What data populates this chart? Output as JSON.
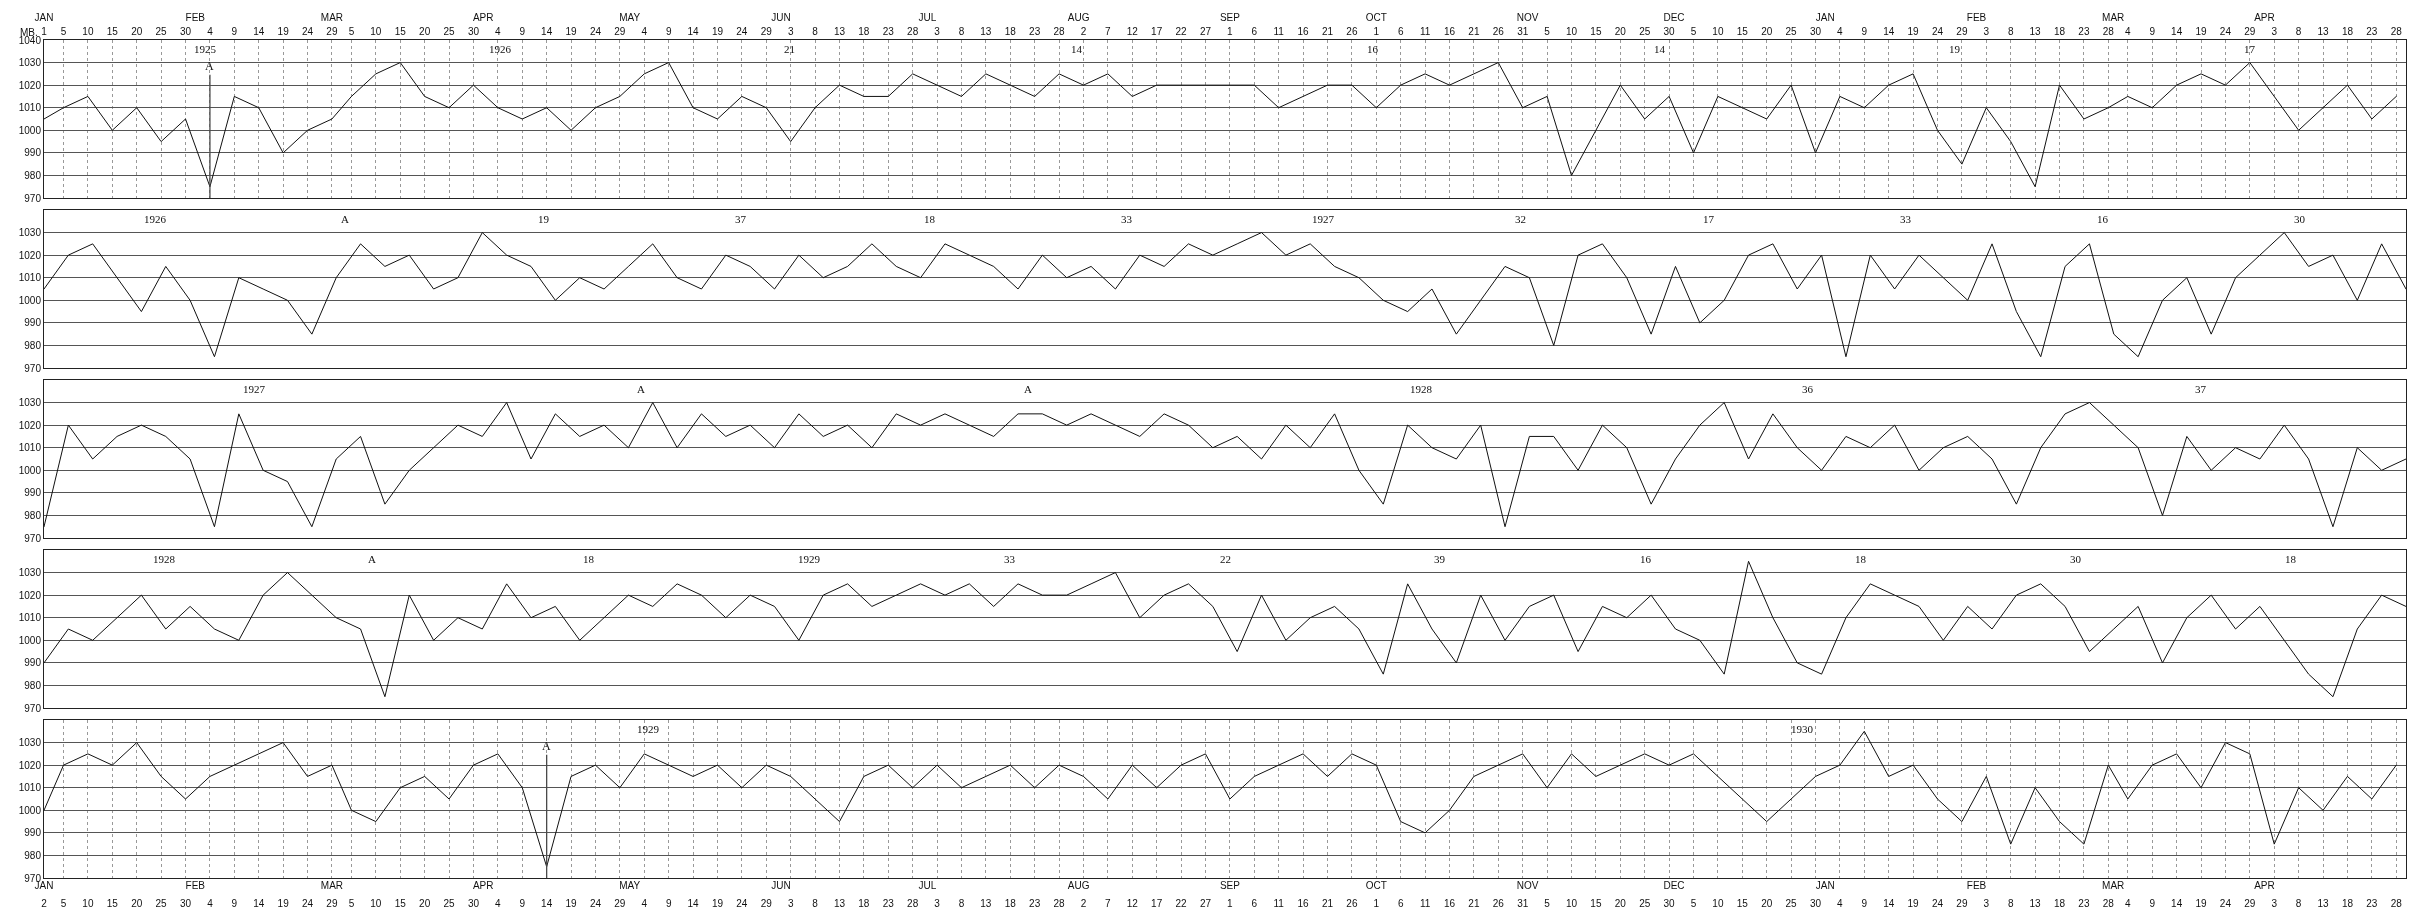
{
  "chart_data": [
    {
      "type": "line",
      "ylabel": "MB.",
      "xlim": [
        "1925-01-01",
        "1926-04-30"
      ],
      "ylim": [
        970,
        1040
      ],
      "yticks": [
        970,
        980,
        990,
        1000,
        1010,
        1020,
        1030,
        1040
      ],
      "grid": true,
      "xticks": [
        {
          "value": "1925-01-01",
          "label": "1"
        },
        {
          "value": "1925-01-05",
          "label": "5"
        },
        {
          "value": "1925-01-10",
          "label": "10"
        },
        {
          "value": "1925-01-15",
          "label": "15"
        },
        {
          "value": "1925-01-20",
          "label": "20"
        },
        {
          "value": "1925-01-25",
          "label": "25"
        },
        {
          "value": "1925-01-30",
          "label": "30"
        },
        {
          "value": "1925-02-04",
          "label": "4"
        },
        {
          "value": "1925-02-09",
          "label": "9"
        },
        {
          "value": "1925-02-14",
          "label": "14"
        },
        {
          "value": "1925-02-19",
          "label": "19"
        },
        {
          "value": "1925-02-24",
          "label": "24"
        },
        {
          "value": "1925-03-01",
          "label": "29"
        },
        {
          "value": "1925-03-05",
          "label": "5"
        },
        {
          "value": "1925-03-10",
          "label": "10"
        },
        {
          "value": "1925-03-15",
          "label": "15"
        },
        {
          "value": "1925-03-20",
          "label": "20"
        },
        {
          "value": "1925-03-25",
          "label": "25"
        },
        {
          "value": "1925-03-30",
          "label": "30"
        },
        {
          "value": "1925-04-04",
          "label": "4"
        },
        {
          "value": "1925-04-09",
          "label": "9"
        },
        {
          "value": "1925-04-14",
          "label": "14"
        },
        {
          "value": "1925-04-19",
          "label": "19"
        },
        {
          "value": "1925-04-24",
          "label": "24"
        },
        {
          "value": "1925-04-29",
          "label": "29"
        },
        {
          "value": "1925-05-04",
          "label": "4"
        },
        {
          "value": "1925-05-09",
          "label": "9"
        },
        {
          "value": "1925-05-14",
          "label": "14"
        },
        {
          "value": "1925-05-19",
          "label": "19"
        },
        {
          "value": "1925-05-24",
          "label": "24"
        },
        {
          "value": "1925-05-29",
          "label": "29"
        },
        {
          "value": "1925-06-03",
          "label": "3"
        },
        {
          "value": "1925-06-08",
          "label": "8"
        },
        {
          "value": "1925-06-13",
          "label": "13"
        },
        {
          "value": "1925-06-18",
          "label": "18"
        },
        {
          "value": "1925-06-23",
          "label": "23"
        },
        {
          "value": "1925-06-28",
          "label": "28"
        },
        {
          "value": "1925-07-03",
          "label": "3"
        },
        {
          "value": "1925-07-08",
          "label": "8"
        },
        {
          "value": "1925-07-13",
          "label": "13"
        },
        {
          "value": "1925-07-18",
          "label": "18"
        },
        {
          "value": "1925-07-23",
          "label": "23"
        },
        {
          "value": "1925-07-28",
          "label": "28"
        },
        {
          "value": "1925-08-02",
          "label": "2"
        },
        {
          "value": "1925-08-07",
          "label": "7"
        },
        {
          "value": "1925-08-12",
          "label": "12"
        },
        {
          "value": "1925-08-17",
          "label": "17"
        },
        {
          "value": "1925-08-22",
          "label": "22"
        },
        {
          "value": "1925-08-27",
          "label": "27"
        },
        {
          "value": "1925-09-01",
          "label": "1"
        },
        {
          "value": "1925-09-06",
          "label": "6"
        },
        {
          "value": "1925-09-11",
          "label": "11"
        },
        {
          "value": "1925-09-16",
          "label": "16"
        },
        {
          "value": "1925-09-21",
          "label": "21"
        },
        {
          "value": "1925-09-26",
          "label": "26"
        },
        {
          "value": "1925-10-01",
          "label": "1"
        },
        {
          "value": "1925-10-06",
          "label": "6"
        },
        {
          "value": "1925-10-11",
          "label": "11"
        },
        {
          "value": "1925-10-16",
          "label": "16"
        },
        {
          "value": "1925-10-21",
          "label": "21"
        },
        {
          "value": "1925-10-26",
          "label": "26"
        },
        {
          "value": "1925-10-31",
          "label": "31"
        },
        {
          "value": "1925-11-05",
          "label": "5"
        },
        {
          "value": "1925-11-10",
          "label": "10"
        },
        {
          "value": "1925-11-15",
          "label": "15"
        },
        {
          "value": "1925-11-20",
          "label": "20"
        },
        {
          "value": "1925-11-25",
          "label": "25"
        },
        {
          "value": "1925-11-30",
          "label": "30"
        },
        {
          "value": "1925-12-05",
          "label": "5"
        },
        {
          "value": "1925-12-10",
          "label": "10"
        },
        {
          "value": "1925-12-15",
          "label": "15"
        },
        {
          "value": "1925-12-20",
          "label": "20"
        },
        {
          "value": "1925-12-25",
          "label": "25"
        },
        {
          "value": "1925-12-30",
          "label": "30"
        },
        {
          "value": "1926-01-04",
          "label": "4"
        },
        {
          "value": "1926-01-09",
          "label": "9"
        },
        {
          "value": "1926-01-14",
          "label": "14"
        },
        {
          "value": "1926-01-19",
          "label": "19"
        },
        {
          "value": "1926-01-24",
          "label": "24"
        },
        {
          "value": "1926-01-29",
          "label": "29"
        },
        {
          "value": "1926-02-03",
          "label": "3"
        },
        {
          "value": "1926-02-08",
          "label": "8"
        },
        {
          "value": "1926-02-13",
          "label": "13"
        },
        {
          "value": "1926-02-18",
          "label": "18"
        },
        {
          "value": "1926-02-23",
          "label": "23"
        },
        {
          "value": "1926-02-28",
          "label": "28"
        },
        {
          "value": "1926-03-04",
          "label": "4"
        },
        {
          "value": "1926-03-09",
          "label": "9"
        },
        {
          "value": "1926-03-14",
          "label": "14"
        },
        {
          "value": "1926-03-19",
          "label": "19"
        },
        {
          "value": "1926-03-24",
          "label": "24"
        },
        {
          "value": "1926-03-29",
          "label": "29"
        },
        {
          "value": "1926-04-03",
          "label": "3"
        },
        {
          "value": "1926-04-08",
          "label": "8"
        },
        {
          "value": "1926-04-13",
          "label": "13"
        },
        {
          "value": "1926-04-18",
          "label": "18"
        },
        {
          "value": "1926-04-23",
          "label": "23"
        },
        {
          "value": "1926-04-28",
          "label": "28"
        }
      ],
      "x2lim": [
        "1925-01-01",
        "1926-04-30"
      ],
      "x2ticks": [
        {
          "value": "1925-01-01",
          "label": "JAN"
        },
        {
          "value": "1925-02-01",
          "label": "FEB"
        },
        {
          "value": "1925-03-01",
          "label": "MAR"
        },
        {
          "value": "1925-04-01",
          "label": "APR"
        },
        {
          "value": "1925-05-01",
          "label": "MAY"
        },
        {
          "value": "1925-06-01",
          "label": "JUN"
        },
        {
          "value": "1925-07-01",
          "label": "JUL"
        },
        {
          "value": "1925-08-01",
          "label": "AUG"
        },
        {
          "value": "1925-09-01",
          "label": "SEP"
        },
        {
          "value": "1925-10-01",
          "label": "OCT"
        },
        {
          "value": "1925-11-01",
          "label": "NOV"
        },
        {
          "value": "1925-12-01",
          "label": "DEC"
        },
        {
          "value": "1926-01-01",
          "label": "JAN"
        },
        {
          "value": "1926-02-01",
          "label": "FEB"
        },
        {
          "value": "1926-03-01",
          "label": "MAR"
        },
        {
          "value": "1926-04-01",
          "label": "APR"
        }
      ],
      "annotations": [
        "1925",
        "1926",
        "21",
        "14",
        "16",
        "14",
        "19",
        "17"
      ],
      "ref_lines": [
        {
          "axis": "x",
          "value": "1925-02-04",
          "label": "A"
        }
      ],
      "series": [
        {
          "color": "#111111",
          "x": [
            "1925-01-01",
            "1925-01-05",
            "1925-01-10",
            "1925-01-15",
            "1925-01-20",
            "1925-01-25",
            "1925-01-30",
            "1925-02-04",
            "1925-02-09",
            "1925-02-14",
            "1925-02-19",
            "1925-02-24",
            "1925-03-01",
            "1925-03-05",
            "1925-03-10",
            "1925-03-15",
            "1925-03-20",
            "1925-03-25",
            "1925-03-30",
            "1925-04-04",
            "1925-04-09",
            "1925-04-14",
            "1925-04-19",
            "1925-04-24",
            "1925-04-29",
            "1925-05-04",
            "1925-05-09",
            "1925-05-14",
            "1925-05-19",
            "1925-05-24",
            "1925-05-29",
            "1925-06-03",
            "1925-06-08",
            "1925-06-13",
            "1925-06-18",
            "1925-06-23",
            "1925-06-28",
            "1925-07-03",
            "1925-07-08",
            "1925-07-13",
            "1925-07-18",
            "1925-07-23",
            "1925-07-28",
            "1925-08-02",
            "1925-08-07",
            "1925-08-12",
            "1925-08-17",
            "1925-08-22",
            "1925-08-27",
            "1925-09-01",
            "1925-09-06",
            "1925-09-11",
            "1925-09-16",
            "1925-09-21",
            "1925-09-26",
            "1925-10-01",
            "1925-10-06",
            "1925-10-11",
            "1925-10-16",
            "1925-10-21",
            "1925-10-26",
            "1925-10-31",
            "1925-11-05",
            "1925-11-10",
            "1925-11-15",
            "1925-11-20",
            "1925-11-25",
            "1925-11-30",
            "1925-12-05",
            "1925-12-10",
            "1925-12-15",
            "1925-12-20",
            "1925-12-25",
            "1925-12-30",
            "1926-01-04",
            "1926-01-09",
            "1926-01-14",
            "1926-01-19",
            "1926-01-24",
            "1926-01-29",
            "1926-02-03",
            "1926-02-08",
            "1926-02-13",
            "1926-02-18",
            "1926-02-23",
            "1926-02-28",
            "1926-03-04",
            "1926-03-09",
            "1926-03-14",
            "1926-03-19",
            "1926-03-24",
            "1926-03-29",
            "1926-04-03",
            "1926-04-08",
            "1926-04-13",
            "1926-04-18",
            "1926-04-23",
            "1926-04-28"
          ],
          "values": [
            1005,
            1010,
            1015,
            1000,
            1010,
            995,
            1005,
            975,
            1015,
            1010,
            990,
            1000,
            1005,
            1015,
            1025,
            1030,
            1015,
            1010,
            1020,
            1010,
            1005,
            1010,
            1000,
            1010,
            1015,
            1025,
            1030,
            1010,
            1005,
            1015,
            1010,
            995,
            1010,
            1020,
            1015,
            1015,
            1025,
            1020,
            1015,
            1025,
            1020,
            1015,
            1025,
            1020,
            1025,
            1015,
            1020,
            1020,
            1020,
            1020,
            1020,
            1010,
            1015,
            1020,
            1020,
            1010,
            1020,
            1025,
            1020,
            1025,
            1030,
            1010,
            1015,
            980,
            1000,
            1020,
            1005,
            1015,
            990,
            1015,
            1010,
            1005,
            1020,
            990,
            1015,
            1010,
            1020,
            1025,
            1000,
            985,
            1010,
            995,
            975,
            1020,
            1005,
            1010,
            1015,
            1010,
            1020,
            1025,
            1020,
            1030,
            1015,
            1000,
            1010,
            1020,
            1005,
            1015
          ]
        }
      ]
    },
    {
      "type": "line",
      "categories": [
        null,
        null,
        null,
        null,
        null,
        null,
        null,
        null,
        null,
        null,
        null,
        null,
        null,
        null,
        null,
        null,
        null,
        null,
        null,
        null,
        null,
        null,
        null,
        null,
        null,
        null,
        null,
        null,
        null,
        null,
        null,
        null,
        null,
        null,
        null,
        null,
        null,
        null,
        null,
        null,
        null,
        null,
        null,
        null,
        null,
        null,
        null,
        null,
        null,
        null,
        null,
        null,
        null,
        null,
        null,
        null,
        null,
        null,
        null,
        null,
        null,
        null,
        null,
        null,
        null,
        null,
        null,
        null,
        null,
        null,
        null,
        null,
        null,
        null,
        null,
        null,
        null,
        null,
        null,
        null,
        null,
        null,
        null,
        null,
        null,
        null,
        null,
        null,
        null,
        null,
        null,
        null,
        null,
        null,
        null,
        null,
        null,
        null
      ],
      "ylim": [
        970,
        1040
      ],
      "yticks": [
        970,
        980,
        990,
        1000,
        1010,
        1020,
        1030
      ],
      "grid": "y",
      "tick_labels": "y",
      "annotations": [
        "1926",
        "A",
        "19",
        "37",
        "18",
        "33",
        "1927",
        "32",
        "17",
        "33",
        "16",
        "30"
      ],
      "series": [
        {
          "color": "#111111",
          "values": [
            1005,
            1020,
            1025,
            1010,
            995,
            1015,
            1000,
            975,
            1010,
            1005,
            1000,
            985,
            1010,
            1025,
            1015,
            1020,
            1005,
            1010,
            1030,
            1020,
            1015,
            1000,
            1010,
            1005,
            1015,
            1025,
            1010,
            1005,
            1020,
            1015,
            1005,
            1020,
            1010,
            1015,
            1025,
            1015,
            1010,
            1025,
            1020,
            1015,
            1005,
            1020,
            1010,
            1015,
            1005,
            1020,
            1015,
            1025,
            1020,
            1025,
            1030,
            1020,
            1025,
            1015,
            1010,
            1000,
            995,
            1005,
            985,
            1000,
            1015,
            1010,
            980,
            1020,
            1025,
            1010,
            985,
            1015,
            990,
            1000,
            1020,
            1025,
            1005,
            1020,
            975,
            1020,
            1005,
            1020,
            1010,
            1000,
            1025,
            995,
            975,
            1015,
            1025,
            985,
            975,
            1000,
            1010,
            985,
            1010,
            1020,
            1030,
            1015,
            1020,
            1000,
            1025,
            1005
          ]
        }
      ]
    },
    {
      "type": "line",
      "categories": [
        null,
        null,
        null,
        null,
        null,
        null,
        null,
        null,
        null,
        null,
        null,
        null,
        null,
        null,
        null,
        null,
        null,
        null,
        null,
        null,
        null,
        null,
        null,
        null,
        null,
        null,
        null,
        null,
        null,
        null,
        null,
        null,
        null,
        null,
        null,
        null,
        null,
        null,
        null,
        null,
        null,
        null,
        null,
        null,
        null,
        null,
        null,
        null,
        null,
        null,
        null,
        null,
        null,
        null,
        null,
        null,
        null,
        null,
        null,
        null,
        null,
        null,
        null,
        null,
        null,
        null,
        null,
        null,
        null,
        null,
        null,
        null,
        null,
        null,
        null,
        null,
        null,
        null,
        null,
        null,
        null,
        null,
        null,
        null,
        null,
        null,
        null,
        null,
        null,
        null,
        null,
        null,
        null,
        null,
        null,
        null,
        null,
        null
      ],
      "ylim": [
        970,
        1040
      ],
      "yticks": [
        970,
        980,
        990,
        1000,
        1010,
        1020,
        1030
      ],
      "grid": "y",
      "tick_labels": "y",
      "annotations": [
        "1927",
        "A",
        "A",
        "1928",
        "36",
        "37"
      ],
      "series": [
        {
          "color": "#111111",
          "values": [
            975,
            1020,
            1005,
            1015,
            1020,
            1015,
            1005,
            975,
            1025,
            1000,
            995,
            975,
            1005,
            1015,
            985,
            1000,
            1010,
            1020,
            1015,
            1030,
            1005,
            1025,
            1015,
            1020,
            1010,
            1030,
            1010,
            1025,
            1015,
            1020,
            1010,
            1025,
            1015,
            1020,
            1010,
            1025,
            1020,
            1025,
            1020,
            1015,
            1025,
            1025,
            1020,
            1025,
            1020,
            1015,
            1025,
            1020,
            1010,
            1015,
            1005,
            1020,
            1010,
            1025,
            1000,
            985,
            1020,
            1010,
            1005,
            1020,
            975,
            1015,
            1015,
            1000,
            1020,
            1010,
            985,
            1005,
            1020,
            1030,
            1005,
            1025,
            1010,
            1000,
            1015,
            1010,
            1020,
            1000,
            1010,
            1015,
            1005,
            985,
            1010,
            1025,
            1030,
            1020,
            1010,
            980,
            1015,
            1000,
            1010,
            1005,
            1020,
            1005,
            975,
            1010,
            1000,
            1005
          ]
        }
      ]
    },
    {
      "type": "line",
      "categories": [
        null,
        null,
        null,
        null,
        null,
        null,
        null,
        null,
        null,
        null,
        null,
        null,
        null,
        null,
        null,
        null,
        null,
        null,
        null,
        null,
        null,
        null,
        null,
        null,
        null,
        null,
        null,
        null,
        null,
        null,
        null,
        null,
        null,
        null,
        null,
        null,
        null,
        null,
        null,
        null,
        null,
        null,
        null,
        null,
        null,
        null,
        null,
        null,
        null,
        null,
        null,
        null,
        null,
        null,
        null,
        null,
        null,
        null,
        null,
        null,
        null,
        null,
        null,
        null,
        null,
        null,
        null,
        null,
        null,
        null,
        null,
        null,
        null,
        null,
        null,
        null,
        null,
        null,
        null,
        null,
        null,
        null,
        null,
        null,
        null,
        null,
        null,
        null,
        null,
        null,
        null,
        null,
        null,
        null,
        null,
        null,
        null,
        null
      ],
      "ylim": [
        970,
        1040
      ],
      "yticks": [
        970,
        980,
        990,
        1000,
        1010,
        1020,
        1030
      ],
      "grid": "y",
      "tick_labels": "y",
      "annotations": [
        "1928",
        "A",
        "18",
        "1929",
        "33",
        "22",
        "39",
        "16",
        "18",
        "30",
        "18"
      ],
      "series": [
        {
          "color": "#111111",
          "values": [
            990,
            1005,
            1000,
            1010,
            1020,
            1005,
            1015,
            1005,
            1000,
            1020,
            1030,
            1020,
            1010,
            1005,
            975,
            1020,
            1000,
            1010,
            1005,
            1025,
            1010,
            1015,
            1000,
            1010,
            1020,
            1015,
            1025,
            1020,
            1010,
            1020,
            1015,
            1000,
            1020,
            1025,
            1015,
            1020,
            1025,
            1020,
            1025,
            1015,
            1025,
            1020,
            1020,
            1025,
            1030,
            1010,
            1020,
            1025,
            1015,
            995,
            1020,
            1000,
            1010,
            1015,
            1005,
            985,
            1025,
            1005,
            990,
            1020,
            1000,
            1015,
            1020,
            995,
            1015,
            1010,
            1020,
            1005,
            1000,
            985,
            1035,
            1010,
            990,
            985,
            1010,
            1025,
            1020,
            1015,
            1000,
            1015,
            1005,
            1020,
            1025,
            1015,
            995,
            1005,
            1015,
            990,
            1010,
            1020,
            1005,
            1015,
            1000,
            985,
            975,
            1005,
            1020,
            1015
          ]
        }
      ]
    },
    {
      "type": "line",
      "xlim": [
        "1929-01-01",
        "1930-04-30"
      ],
      "ylim": [
        970,
        1040
      ],
      "yticks": [
        970,
        980,
        990,
        1000,
        1010,
        1020,
        1030
      ],
      "grid": true,
      "xticks": [
        {
          "value": "1929-01-01",
          "label": "2"
        },
        {
          "value": "1929-01-05",
          "label": "5"
        },
        {
          "value": "1929-01-10",
          "label": "10"
        },
        {
          "value": "1929-01-15",
          "label": "15"
        },
        {
          "value": "1929-01-20",
          "label": "20"
        },
        {
          "value": "1929-01-25",
          "label": "25"
        },
        {
          "value": "1929-01-30",
          "label": "30"
        },
        {
          "value": "1929-02-04",
          "label": "4"
        },
        {
          "value": "1929-02-09",
          "label": "9"
        },
        {
          "value": "1929-02-14",
          "label": "14"
        },
        {
          "value": "1929-02-19",
          "label": "19"
        },
        {
          "value": "1929-02-24",
          "label": "24"
        },
        {
          "value": "1929-03-01",
          "label": "29"
        },
        {
          "value": "1929-03-05",
          "label": "5"
        },
        {
          "value": "1929-03-10",
          "label": "10"
        },
        {
          "value": "1929-03-15",
          "label": "15"
        },
        {
          "value": "1929-03-20",
          "label": "20"
        },
        {
          "value": "1929-03-25",
          "label": "25"
        },
        {
          "value": "1929-03-30",
          "label": "30"
        },
        {
          "value": "1929-04-04",
          "label": "4"
        },
        {
          "value": "1929-04-09",
          "label": "9"
        },
        {
          "value": "1929-04-14",
          "label": "14"
        },
        {
          "value": "1929-04-19",
          "label": "19"
        },
        {
          "value": "1929-04-24",
          "label": "24"
        },
        {
          "value": "1929-04-29",
          "label": "29"
        },
        {
          "value": "1929-05-04",
          "label": "4"
        },
        {
          "value": "1929-05-09",
          "label": "9"
        },
        {
          "value": "1929-05-14",
          "label": "14"
        },
        {
          "value": "1929-05-19",
          "label": "19"
        },
        {
          "value": "1929-05-24",
          "label": "24"
        },
        {
          "value": "1929-05-29",
          "label": "29"
        },
        {
          "value": "1929-06-03",
          "label": "3"
        },
        {
          "value": "1929-06-08",
          "label": "8"
        },
        {
          "value": "1929-06-13",
          "label": "13"
        },
        {
          "value": "1929-06-18",
          "label": "18"
        },
        {
          "value": "1929-06-23",
          "label": "23"
        },
        {
          "value": "1929-06-28",
          "label": "28"
        },
        {
          "value": "1929-07-03",
          "label": "3"
        },
        {
          "value": "1929-07-08",
          "label": "8"
        },
        {
          "value": "1929-07-13",
          "label": "13"
        },
        {
          "value": "1929-07-18",
          "label": "18"
        },
        {
          "value": "1929-07-23",
          "label": "23"
        },
        {
          "value": "1929-07-28",
          "label": "28"
        },
        {
          "value": "1929-08-02",
          "label": "2"
        },
        {
          "value": "1929-08-07",
          "label": "7"
        },
        {
          "value": "1929-08-12",
          "label": "12"
        },
        {
          "value": "1929-08-17",
          "label": "17"
        },
        {
          "value": "1929-08-22",
          "label": "22"
        },
        {
          "value": "1929-08-27",
          "label": "27"
        },
        {
          "value": "1929-09-01",
          "label": "1"
        },
        {
          "value": "1929-09-06",
          "label": "6"
        },
        {
          "value": "1929-09-11",
          "label": "11"
        },
        {
          "value": "1929-09-16",
          "label": "16"
        },
        {
          "value": "1929-09-21",
          "label": "21"
        },
        {
          "value": "1929-09-26",
          "label": "26"
        },
        {
          "value": "1929-10-01",
          "label": "1"
        },
        {
          "value": "1929-10-06",
          "label": "6"
        },
        {
          "value": "1929-10-11",
          "label": "11"
        },
        {
          "value": "1929-10-16",
          "label": "16"
        },
        {
          "value": "1929-10-21",
          "label": "21"
        },
        {
          "value": "1929-10-26",
          "label": "26"
        },
        {
          "value": "1929-10-31",
          "label": "31"
        },
        {
          "value": "1929-11-05",
          "label": "5"
        },
        {
          "value": "1929-11-10",
          "label": "10"
        },
        {
          "value": "1929-11-15",
          "label": "15"
        },
        {
          "value": "1929-11-20",
          "label": "20"
        },
        {
          "value": "1929-11-25",
          "label": "25"
        },
        {
          "value": "1929-11-30",
          "label": "30"
        },
        {
          "value": "1929-12-05",
          "label": "5"
        },
        {
          "value": "1929-12-10",
          "label": "10"
        },
        {
          "value": "1929-12-15",
          "label": "15"
        },
        {
          "value": "1929-12-20",
          "label": "20"
        },
        {
          "value": "1929-12-25",
          "label": "25"
        },
        {
          "value": "1929-12-30",
          "label": "30"
        },
        {
          "value": "1930-01-04",
          "label": "4"
        },
        {
          "value": "1930-01-09",
          "label": "9"
        },
        {
          "value": "1930-01-14",
          "label": "14"
        },
        {
          "value": "1930-01-19",
          "label": "19"
        },
        {
          "value": "1930-01-24",
          "label": "24"
        },
        {
          "value": "1930-01-29",
          "label": "29"
        },
        {
          "value": "1930-02-03",
          "label": "3"
        },
        {
          "value": "1930-02-08",
          "label": "8"
        },
        {
          "value": "1930-02-13",
          "label": "13"
        },
        {
          "value": "1930-02-18",
          "label": "18"
        },
        {
          "value": "1930-02-23",
          "label": "23"
        },
        {
          "value": "1930-02-28",
          "label": "28"
        },
        {
          "value": "1930-03-04",
          "label": "4"
        },
        {
          "value": "1930-03-09",
          "label": "9"
        },
        {
          "value": "1930-03-14",
          "label": "14"
        },
        {
          "value": "1930-03-19",
          "label": "19"
        },
        {
          "value": "1930-03-24",
          "label": "24"
        },
        {
          "value": "1930-03-29",
          "label": "29"
        },
        {
          "value": "1930-04-03",
          "label": "3"
        },
        {
          "value": "1930-04-08",
          "label": "8"
        },
        {
          "value": "1930-04-13",
          "label": "13"
        },
        {
          "value": "1930-04-18",
          "label": "18"
        },
        {
          "value": "1930-04-23",
          "label": "23"
        },
        {
          "value": "1930-04-28",
          "label": "28"
        }
      ],
      "x2lim": [
        "1929-01-01",
        "1930-04-30"
      ],
      "x2ticks": [
        {
          "value": "1929-01-01",
          "label": "JAN"
        },
        {
          "value": "1929-02-01",
          "label": "FEB"
        },
        {
          "value": "1929-03-01",
          "label": "MAR"
        },
        {
          "value": "1929-04-01",
          "label": "APR"
        },
        {
          "value": "1929-05-01",
          "label": "MAY"
        },
        {
          "value": "1929-06-01",
          "label": "JUN"
        },
        {
          "value": "1929-07-01",
          "label": "JUL"
        },
        {
          "value": "1929-08-01",
          "label": "AUG"
        },
        {
          "value": "1929-09-01",
          "label": "SEP"
        },
        {
          "value": "1929-10-01",
          "label": "OCT"
        },
        {
          "value": "1929-11-01",
          "label": "NOV"
        },
        {
          "value": "1929-12-01",
          "label": "DEC"
        },
        {
          "value": "1930-01-01",
          "label": "JAN"
        },
        {
          "value": "1930-02-01",
          "label": "FEB"
        },
        {
          "value": "1930-03-01",
          "label": "MAR"
        },
        {
          "value": "1930-04-01",
          "label": "APR"
        }
      ],
      "annotations": [
        "1929",
        "1930"
      ],
      "ref_lines": [
        {
          "axis": "x",
          "value": "1929-04-14",
          "label": "A"
        }
      ],
      "series": [
        {
          "color": "#111111",
          "x": [
            "1929-01-01",
            "1929-01-05",
            "1929-01-10",
            "1929-01-15",
            "1929-01-20",
            "1929-01-25",
            "1929-01-30",
            "1929-02-04",
            "1929-02-09",
            "1929-02-14",
            "1929-02-19",
            "1929-02-24",
            "1929-03-01",
            "1929-03-05",
            "1929-03-10",
            "1929-03-15",
            "1929-03-20",
            "1929-03-25",
            "1929-03-30",
            "1929-04-04",
            "1929-04-09",
            "1929-04-14",
            "1929-04-19",
            "1929-04-24",
            "1929-04-29",
            "1929-05-04",
            "1929-05-09",
            "1929-05-14",
            "1929-05-19",
            "1929-05-24",
            "1929-05-29",
            "1929-06-03",
            "1929-06-08",
            "1929-06-13",
            "1929-06-18",
            "1929-06-23",
            "1929-06-28",
            "1929-07-03",
            "1929-07-08",
            "1929-07-13",
            "1929-07-18",
            "1929-07-23",
            "1929-07-28",
            "1929-08-02",
            "1929-08-07",
            "1929-08-12",
            "1929-08-17",
            "1929-08-22",
            "1929-08-27",
            "1929-09-01",
            "1929-09-06",
            "1929-09-11",
            "1929-09-16",
            "1929-09-21",
            "1929-09-26",
            "1929-10-01",
            "1929-10-06",
            "1929-10-11",
            "1929-10-16",
            "1929-10-21",
            "1929-10-26",
            "1929-10-31",
            "1929-11-05",
            "1929-11-10",
            "1929-11-15",
            "1929-11-20",
            "1929-11-25",
            "1929-11-30",
            "1929-12-05",
            "1929-12-10",
            "1929-12-15",
            "1929-12-20",
            "1929-12-25",
            "1929-12-30",
            "1930-01-04",
            "1930-01-09",
            "1930-01-14",
            "1930-01-19",
            "1930-01-24",
            "1930-01-29",
            "1930-02-03",
            "1930-02-08",
            "1930-02-13",
            "1930-02-18",
            "1930-02-23",
            "1930-02-28",
            "1930-03-04",
            "1930-03-09",
            "1930-03-14",
            "1930-03-19",
            "1930-03-24",
            "1930-03-29",
            "1930-04-03",
            "1930-04-08",
            "1930-04-13",
            "1930-04-18",
            "1930-04-23",
            "1930-04-28"
          ],
          "values": [
            1000,
            1020,
            1025,
            1020,
            1030,
            1015,
            1005,
            1015,
            1020,
            1025,
            1030,
            1015,
            1020,
            1000,
            995,
            1010,
            1015,
            1005,
            1020,
            1025,
            1010,
            975,
            1015,
            1020,
            1010,
            1025,
            1020,
            1015,
            1020,
            1010,
            1020,
            1015,
            1005,
            995,
            1015,
            1020,
            1010,
            1020,
            1010,
            1015,
            1020,
            1010,
            1020,
            1015,
            1005,
            1020,
            1010,
            1020,
            1025,
            1005,
            1015,
            1020,
            1025,
            1015,
            1025,
            1020,
            995,
            990,
            1000,
            1015,
            1020,
            1025,
            1010,
            1025,
            1015,
            1020,
            1025,
            1020,
            1025,
            1015,
            1005,
            995,
            1005,
            1015,
            1020,
            1035,
            1015,
            1020,
            1005,
            995,
            1015,
            985,
            1010,
            995,
            985,
            1020,
            1005,
            1020,
            1025,
            1010,
            1030,
            1025,
            985,
            1010,
            1000,
            1015,
            1005,
            1020
          ]
        }
      ]
    }
  ]
}
